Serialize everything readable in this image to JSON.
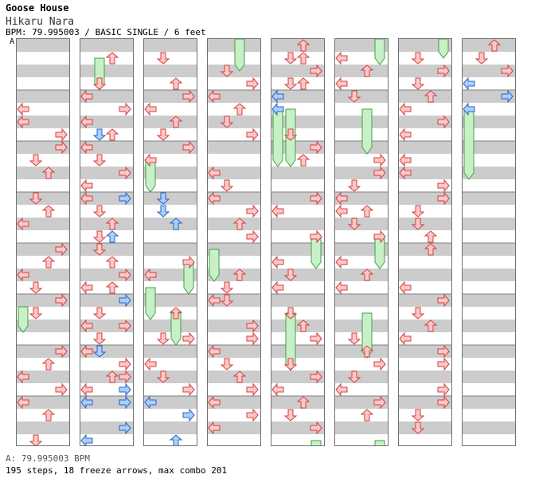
{
  "song": {
    "title": "Goose House",
    "artist": "Hikaru Nara",
    "info": "BPM: 79.995003 / BASIC SINGLE / 6 feet"
  },
  "chart_marker": "A",
  "footer": {
    "bpm_line": "A: 79.995003 BPM",
    "stats": "195 steps, 18 freeze arrows, max combo 201"
  },
  "colors": {
    "stripe": "#cccccc",
    "measure_line": "#808080",
    "red_arrow_fill": "#ffc8c8",
    "red_arrow_stroke": "#d04040",
    "blue_arrow_fill": "#a8d0ff",
    "blue_arrow_stroke": "#3060c0",
    "freeze_fill": "#c8f0c8",
    "freeze_stroke": "#40a040"
  },
  "chart": {
    "columns": 8,
    "beats_per_column": 32,
    "lanes": [
      "left",
      "down",
      "up",
      "right"
    ],
    "lane_icons": [
      "left-arrow-icon",
      "down-arrow-icon",
      "up-arrow-icon",
      "right-arrow-icon"
    ],
    "notes": [
      [
        [
          0,
          5.5,
          0
        ],
        [
          0,
          6.5,
          0
        ],
        [
          3,
          7.5,
          0
        ],
        [
          3,
          8.5,
          0
        ],
        [
          1,
          9.5,
          0
        ],
        [
          2,
          10.5,
          0
        ],
        [
          1,
          12.5,
          0
        ],
        [
          2,
          13.5,
          0
        ],
        [
          0,
          14.5,
          0
        ],
        [
          3,
          16.5,
          0
        ],
        [
          2,
          17.5,
          0
        ],
        [
          0,
          18.5,
          0
        ],
        [
          1,
          19.5,
          0
        ],
        [
          3,
          20.5,
          0
        ],
        [
          1,
          21.5,
          0
        ],
        [
          3,
          24.5,
          0
        ],
        [
          2,
          25.5,
          0
        ],
        [
          0,
          26.5,
          0
        ],
        [
          3,
          27.5,
          0
        ],
        [
          0,
          28.5,
          0
        ],
        [
          2,
          29.5,
          0
        ],
        [
          1,
          31.5,
          0
        ]
      ],
      [
        [
          2,
          1.5,
          0
        ],
        [
          1,
          3.5,
          0
        ],
        [
          0,
          4.5,
          0
        ],
        [
          3,
          5.5,
          0
        ],
        [
          0,
          6.5,
          0
        ],
        [
          2,
          7.5,
          0
        ],
        [
          1,
          7.5,
          1
        ],
        [
          0,
          8.5,
          0
        ],
        [
          1,
          9.5,
          0
        ],
        [
          3,
          10.5,
          0
        ],
        [
          0,
          11.5,
          0
        ],
        [
          3,
          12.5,
          1
        ],
        [
          0,
          12.5,
          0
        ],
        [
          1,
          13.5,
          0
        ],
        [
          2,
          14.5,
          0
        ],
        [
          1,
          15.5,
          0
        ],
        [
          2,
          15.5,
          1
        ],
        [
          1,
          16.5,
          0
        ],
        [
          2,
          17.5,
          0
        ],
        [
          3,
          18.5,
          0
        ],
        [
          0,
          19.5,
          0
        ],
        [
          2,
          19.5,
          0
        ],
        [
          3,
          20.5,
          1
        ],
        [
          1,
          21.5,
          0
        ],
        [
          0,
          22.5,
          0
        ],
        [
          3,
          22.5,
          0
        ],
        [
          1,
          23.5,
          0
        ],
        [
          0,
          24.5,
          0
        ],
        [
          3,
          25.5,
          0
        ],
        [
          1,
          24.5,
          1
        ],
        [
          3,
          26.5,
          0
        ],
        [
          2,
          26.5,
          0
        ],
        [
          0,
          27.5,
          0
        ],
        [
          3,
          27.5,
          1
        ],
        [
          3,
          28.5,
          1
        ],
        [
          0,
          28.5,
          1
        ],
        [
          3,
          30.5,
          1
        ],
        [
          0,
          31.5,
          1
        ]
      ],
      [
        [
          1,
          1.5,
          0
        ],
        [
          2,
          3.5,
          0
        ],
        [
          3,
          4.5,
          0
        ],
        [
          0,
          5.5,
          0
        ],
        [
          2,
          6.5,
          0
        ],
        [
          1,
          7.5,
          0
        ],
        [
          3,
          8.5,
          0
        ],
        [
          0,
          9.5,
          0
        ],
        [
          1,
          12.5,
          1
        ],
        [
          1,
          13.5,
          1
        ],
        [
          2,
          14.5,
          1
        ],
        [
          3,
          17.5,
          0
        ],
        [
          0,
          18.5,
          0
        ],
        [
          2,
          21.5,
          0
        ],
        [
          1,
          23.5,
          0
        ],
        [
          3,
          23.5,
          0
        ],
        [
          0,
          25.5,
          0
        ],
        [
          1,
          26.5,
          0
        ],
        [
          3,
          27.5,
          0
        ],
        [
          0,
          28.5,
          1
        ],
        [
          3,
          29.5,
          1
        ],
        [
          2,
          31.5,
          1
        ]
      ],
      [
        [
          1,
          2.5,
          0
        ],
        [
          3,
          3.5,
          0
        ],
        [
          0,
          4.5,
          0
        ],
        [
          2,
          5.5,
          0
        ],
        [
          1,
          6.5,
          0
        ],
        [
          3,
          7.5,
          0
        ],
        [
          0,
          10.5,
          0
        ],
        [
          1,
          11.5,
          0
        ],
        [
          0,
          12.5,
          0
        ],
        [
          3,
          13.5,
          0
        ],
        [
          2,
          14.5,
          0
        ],
        [
          3,
          15.5,
          0
        ],
        [
          2,
          18.5,
          0
        ],
        [
          1,
          19.5,
          0
        ],
        [
          0,
          20.5,
          0
        ],
        [
          1,
          20.5,
          0
        ],
        [
          3,
          22.5,
          0
        ],
        [
          3,
          23.5,
          0
        ],
        [
          0,
          24.5,
          0
        ],
        [
          1,
          25.5,
          0
        ],
        [
          2,
          26.5,
          0
        ],
        [
          3,
          27.5,
          0
        ],
        [
          0,
          28.5,
          0
        ],
        [
          3,
          29.5,
          0
        ],
        [
          0,
          30.5,
          0
        ]
      ],
      [
        [
          1,
          1.5,
          0
        ],
        [
          2,
          0.5,
          0
        ],
        [
          2,
          1.5,
          0
        ],
        [
          1,
          3.5,
          0
        ],
        [
          2,
          3.5,
          0
        ],
        [
          3,
          2.5,
          0
        ],
        [
          0,
          4.5,
          1
        ],
        [
          0,
          5.5,
          1
        ],
        [
          1,
          7.5,
          0
        ],
        [
          3,
          8.5,
          0
        ],
        [
          2,
          9.5,
          0
        ],
        [
          3,
          12.5,
          0
        ],
        [
          0,
          13.5,
          0
        ],
        [
          3,
          15.5,
          0
        ],
        [
          0,
          17.5,
          0
        ],
        [
          1,
          18.5,
          0
        ],
        [
          0,
          19.5,
          0
        ],
        [
          1,
          21.5,
          0
        ],
        [
          2,
          22.5,
          0
        ],
        [
          3,
          23.5,
          0
        ],
        [
          1,
          25.5,
          0
        ],
        [
          3,
          26.5,
          0
        ],
        [
          0,
          27.5,
          0
        ],
        [
          2,
          28.5,
          0
        ],
        [
          1,
          29.5,
          0
        ],
        [
          3,
          30.5,
          0
        ]
      ],
      [
        [
          0,
          1.5,
          0
        ],
        [
          2,
          2.5,
          0
        ],
        [
          0,
          3.5,
          0
        ],
        [
          1,
          4.5,
          0
        ],
        [
          3,
          9.5,
          0
        ],
        [
          3,
          10.5,
          0
        ],
        [
          1,
          11.5,
          0
        ],
        [
          0,
          12.5,
          0
        ],
        [
          0,
          13.5,
          0
        ],
        [
          2,
          13.5,
          0
        ],
        [
          1,
          14.5,
          0
        ],
        [
          3,
          15.5,
          0
        ],
        [
          0,
          17.5,
          0
        ],
        [
          2,
          18.5,
          0
        ],
        [
          0,
          19.5,
          0
        ],
        [
          1,
          23.5,
          0
        ],
        [
          2,
          24.5,
          0
        ],
        [
          3,
          25.5,
          0
        ],
        [
          1,
          26.5,
          0
        ],
        [
          0,
          27.5,
          0
        ],
        [
          3,
          28.5,
          0
        ],
        [
          2,
          29.5,
          0
        ]
      ],
      [
        [
          1,
          1.5,
          0
        ],
        [
          3,
          2.5,
          0
        ],
        [
          1,
          3.5,
          0
        ],
        [
          2,
          4.5,
          0
        ],
        [
          0,
          5.5,
          0
        ],
        [
          3,
          6.5,
          0
        ],
        [
          0,
          7.5,
          0
        ],
        [
          0,
          9.5,
          0
        ],
        [
          0,
          10.5,
          0
        ],
        [
          3,
          11.5,
          0
        ],
        [
          3,
          12.5,
          0
        ],
        [
          1,
          13.5,
          0
        ],
        [
          1,
          14.5,
          0
        ],
        [
          2,
          15.5,
          0
        ],
        [
          2,
          16.5,
          0
        ],
        [
          0,
          19.5,
          0
        ],
        [
          3,
          20.5,
          0
        ],
        [
          1,
          21.5,
          0
        ],
        [
          2,
          22.5,
          0
        ],
        [
          0,
          23.5,
          0
        ],
        [
          3,
          24.5,
          0
        ],
        [
          3,
          25.5,
          0
        ],
        [
          3,
          27.5,
          0
        ],
        [
          3,
          28.5,
          0
        ],
        [
          1,
          29.5,
          0
        ],
        [
          1,
          30.5,
          0
        ]
      ],
      [
        [
          2,
          0.5,
          0
        ],
        [
          1,
          1.5,
          0
        ],
        [
          3,
          2.5,
          0
        ],
        [
          0,
          3.5,
          1
        ],
        [
          3,
          4.5,
          1
        ],
        [
          0,
          5.5,
          1
        ]
      ]
    ],
    "freezes": [
      [
        [
          0,
          21,
          22.5
        ]
      ],
      [
        [
          1,
          1.5,
          3.5
        ]
      ],
      [
        [
          0,
          9.5,
          11.5
        ],
        [
          3,
          17.5,
          19.5
        ],
        [
          0,
          19.5,
          21.5
        ],
        [
          2,
          21.5,
          23.5
        ]
      ],
      [
        [
          2,
          0,
          2.0
        ],
        [
          0,
          16.5,
          18.5
        ]
      ],
      [
        [
          0,
          5.5,
          9.5
        ],
        [
          1,
          5.5,
          9.5
        ],
        [
          3,
          15.5,
          17.5
        ],
        [
          1,
          21.5,
          25.5
        ],
        [
          3,
          31.5,
          32.0
        ]
      ],
      [
        [
          3,
          0,
          1.5
        ],
        [
          2,
          5.5,
          8.5
        ],
        [
          3,
          15.5,
          17.5
        ],
        [
          2,
          21.5,
          24.5
        ],
        [
          3,
          31.5,
          32.0
        ]
      ],
      [
        [
          3,
          0,
          1.0
        ]
      ],
      [
        [
          0,
          5.5,
          10.5
        ]
      ]
    ]
  }
}
